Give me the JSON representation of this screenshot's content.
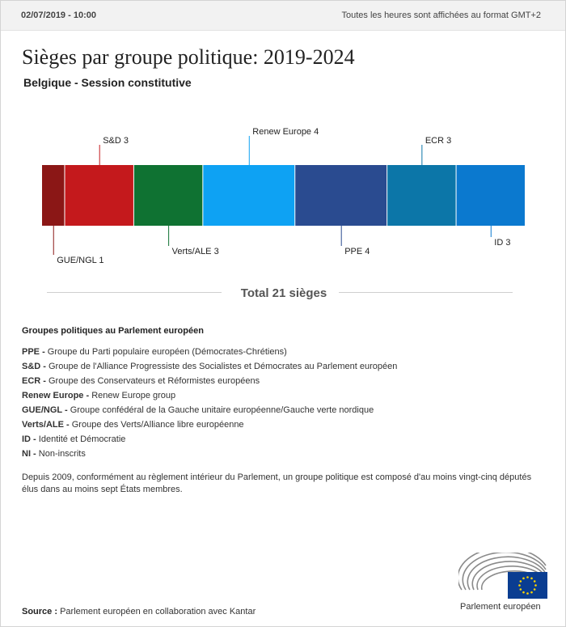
{
  "header": {
    "date": "02/07/2019 - 10:00",
    "timezone_note": "Toutes les heures sont affichées au format GMT+2"
  },
  "title": "Sièges par groupe politique: 2019-2024",
  "subtitle": "Belgique - Session constitutive",
  "chart_data": {
    "type": "bar",
    "orientation": "horizontal-stacked",
    "total": 21,
    "categories": [
      "GUE/NGL",
      "S&D",
      "Verts/ALE",
      "Renew Europe",
      "PPE",
      "ECR",
      "ID"
    ],
    "values": [
      1,
      3,
      3,
      4,
      4,
      3,
      3
    ],
    "colors": [
      "#8b1716",
      "#c4191c",
      "#0f7232",
      "#0ea2f3",
      "#2a4b90",
      "#0c76a8",
      "#0b79cf"
    ],
    "label_placement": [
      "below",
      "above",
      "below",
      "above",
      "below",
      "above",
      "below"
    ],
    "label_tiers": [
      2,
      1,
      1,
      2,
      1,
      1,
      0
    ]
  },
  "total_label": "Total 21 sièges",
  "groups_title": "Groupes politiques au Parlement européen",
  "groups": [
    {
      "abbr": "PPE",
      "name": "Groupe du Parti populaire européen (Démocrates-Chrétiens)"
    },
    {
      "abbr": "S&D",
      "name": "Groupe de l'Alliance Progressiste des Socialistes et Démocrates au Parlement européen"
    },
    {
      "abbr": "ECR",
      "name": "Groupe des Conservateurs et Réformistes européens"
    },
    {
      "abbr": "Renew Europe",
      "name": "Renew Europe group"
    },
    {
      "abbr": "GUE/NGL",
      "name": "Groupe confédéral de la Gauche unitaire européenne/Gauche verte nordique"
    },
    {
      "abbr": "Verts/ALE",
      "name": "Groupe des Verts/Alliance libre européenne"
    },
    {
      "abbr": "ID",
      "name": "Identité et Démocratie"
    },
    {
      "abbr": "NI",
      "name": "Non-inscrits"
    }
  ],
  "note": "Depuis 2009, conformément au règlement intérieur du Parlement, un groupe politique est composé d'au moins vingt-cinq députés élus dans au moins sept États membres.",
  "source": {
    "label": "Source :",
    "text": "Parlement européen en collaboration avec Kantar"
  },
  "logo": {
    "text": "Parlement européen",
    "flag_color": "#0a3d91",
    "star_color": "#ffd500"
  }
}
